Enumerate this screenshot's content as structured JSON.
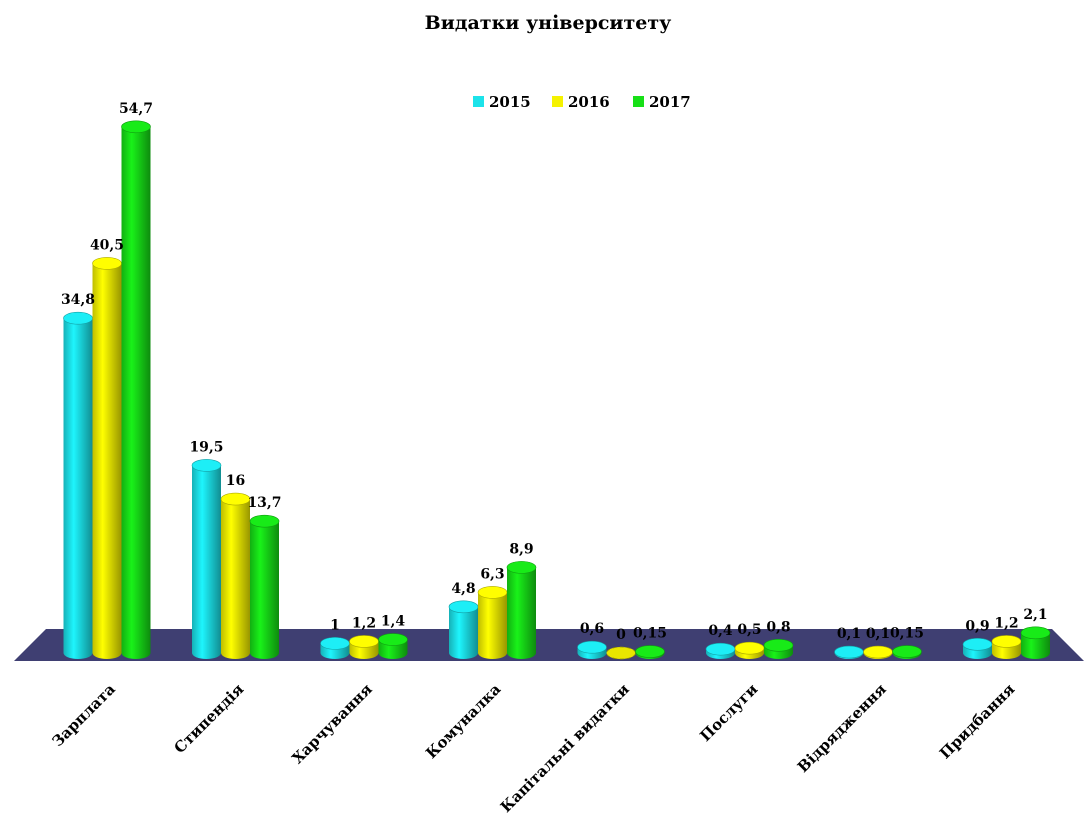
{
  "chart_data": {
    "type": "bar",
    "title": "Видатки університету",
    "categories": [
      "Зарплата",
      "Стипендія",
      "Харчування",
      "Комуналка",
      "Капітальні видатки",
      "Послуги",
      "Відрядження",
      "Придбання"
    ],
    "series": [
      {
        "name": "2015",
        "color": "#1ce3ea",
        "values": [
          34.8,
          19.5,
          1,
          4.8,
          0.6,
          0.4,
          0.1,
          0.9
        ],
        "labels": [
          "34,8",
          "19,5",
          "1",
          "4,8",
          "0,6",
          "0,4",
          "0,1",
          "0,9"
        ]
      },
      {
        "name": "2016",
        "color": "#f5f200",
        "values": [
          40.5,
          16,
          1.2,
          6.3,
          0,
          0.5,
          0.1,
          1.2
        ],
        "labels": [
          "40,5",
          "16",
          "1,2",
          "6,3",
          "0",
          "0,5",
          "0,1",
          "1,2"
        ]
      },
      {
        "name": "2017",
        "color": "#17e017",
        "values": [
          54.7,
          13.7,
          1.4,
          8.9,
          0.15,
          0.8,
          0.15,
          2.1
        ],
        "labels": [
          "54,7",
          "13,7",
          "1,4",
          "8,9",
          "0,15",
          "0,8",
          "0,15",
          "2,1"
        ]
      }
    ],
    "legend_position": "top",
    "floor_color": "#3f3f72",
    "ylim": [
      0,
      60
    ],
    "grid": false
  }
}
